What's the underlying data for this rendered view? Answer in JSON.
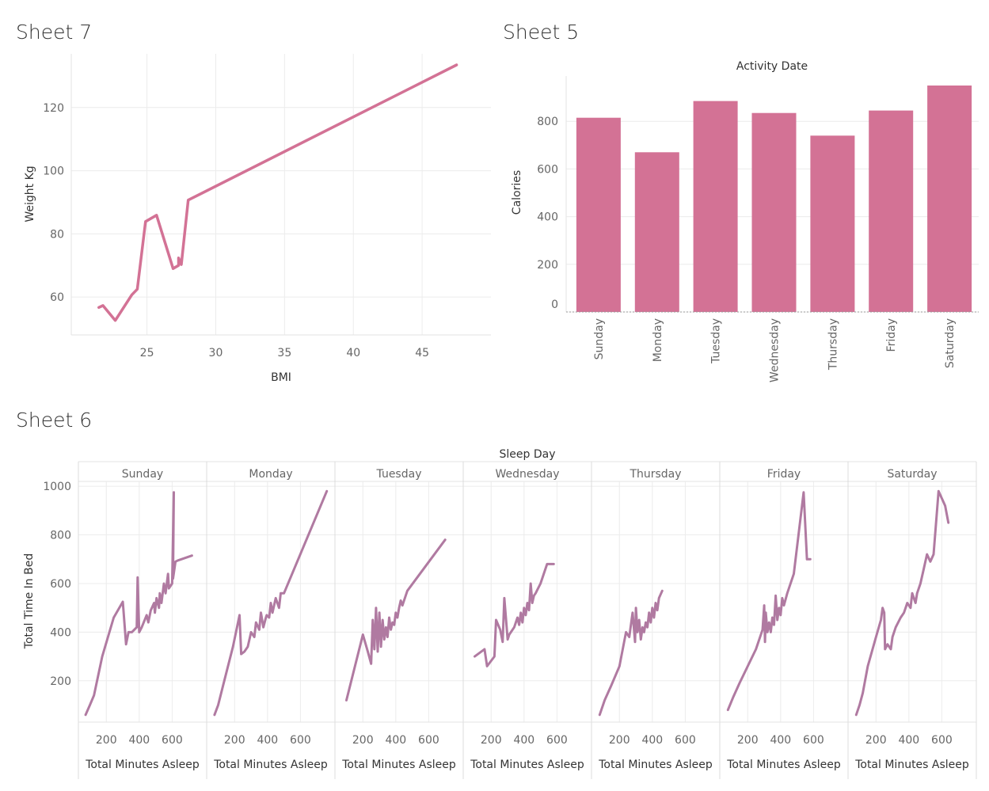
{
  "sheets": {
    "sheet7": "Sheet 7",
    "sheet5": "Sheet 5",
    "sheet6": "Sheet 6"
  },
  "colors": {
    "line": "#d37295",
    "bar": "#d37295",
    "small_multiple_line": "#b07aa1",
    "grid": "#ececec"
  },
  "chart_data": [
    {
      "id": "sheet7",
      "type": "line",
      "title": "Sheet 7",
      "xlabel": "BMI",
      "ylabel": "Weight Kg",
      "xlim": [
        19.5,
        50
      ],
      "ylim": [
        48,
        137
      ],
      "x_ticks": [
        25,
        30,
        35,
        40,
        45
      ],
      "y_ticks": [
        60,
        80,
        100,
        120
      ],
      "grid": true,
      "x": [
        21.5,
        21.8,
        22.7,
        23.9,
        24.3,
        24.9,
        25.7,
        26.9,
        27.3,
        27.3,
        27.5,
        28.0,
        47.5
      ],
      "y": [
        56.7,
        57.3,
        52.6,
        60.7,
        62.5,
        83.9,
        85.9,
        69.0,
        70.0,
        72.4,
        70.3,
        90.7,
        133.5
      ]
    },
    {
      "id": "sheet5",
      "type": "bar",
      "title": "Activity Date",
      "xlabel": "",
      "ylabel": "Calories",
      "ylim": [
        0,
        990
      ],
      "y_ticks": [
        0,
        200,
        400,
        600,
        800
      ],
      "grid": true,
      "categories": [
        "Sunday",
        "Monday",
        "Tuesday",
        "Wednesday",
        "Thursday",
        "Friday",
        "Saturday"
      ],
      "values": [
        815,
        670,
        885,
        835,
        740,
        845,
        950
      ]
    },
    {
      "id": "sheet6",
      "type": "line",
      "title": "Sleep Day",
      "xlabel": "Total Minutes Asleep",
      "ylabel": "Total Time In Bed",
      "ylim": [
        30,
        1020
      ],
      "xlim": [
        40,
        800
      ],
      "x_ticks": [
        200,
        400,
        600
      ],
      "y_ticks": [
        200,
        400,
        600,
        800,
        1000
      ],
      "grid": true,
      "panels": [
        {
          "name": "Sunday",
          "x": [
            74,
            100,
            125,
            175,
            245,
            300,
            320,
            335,
            355,
            385,
            390,
            400,
            415,
            445,
            455,
            470,
            490,
            495,
            505,
            520,
            525,
            535,
            550,
            560,
            575,
            580,
            600,
            610,
            605,
            620,
            635,
            720
          ],
          "y": [
            60,
            100,
            140,
            300,
            460,
            525,
            350,
            400,
            400,
            420,
            625,
            400,
            420,
            470,
            440,
            490,
            520,
            480,
            540,
            500,
            560,
            520,
            600,
            560,
            640,
            580,
            600,
            975,
            620,
            690,
            695,
            715
          ]
        },
        {
          "name": "Monday",
          "x": [
            78,
            100,
            130,
            190,
            230,
            240,
            260,
            280,
            300,
            320,
            330,
            350,
            360,
            375,
            390,
            395,
            410,
            420,
            430,
            450,
            470,
            480,
            500,
            760
          ],
          "y": [
            60,
            100,
            180,
            340,
            470,
            310,
            320,
            340,
            400,
            380,
            440,
            410,
            480,
            420,
            460,
            470,
            460,
            520,
            480,
            540,
            500,
            560,
            560,
            980
          ]
        },
        {
          "name": "Tuesday",
          "x": [
            100,
            200,
            230,
            250,
            260,
            270,
            280,
            290,
            300,
            310,
            320,
            330,
            340,
            350,
            360,
            370,
            380,
            390,
            400,
            410,
            420,
            430,
            440,
            470,
            700
          ],
          "y": [
            120,
            390,
            320,
            270,
            450,
            330,
            500,
            320,
            480,
            340,
            450,
            370,
            420,
            380,
            460,
            410,
            440,
            430,
            480,
            460,
            500,
            530,
            510,
            570,
            780
          ]
        },
        {
          "name": "Wednesday",
          "x": [
            100,
            160,
            175,
            220,
            230,
            255,
            270,
            280,
            300,
            310,
            340,
            360,
            370,
            380,
            390,
            400,
            410,
            420,
            430,
            440,
            450,
            460,
            470,
            500,
            540,
            560,
            580
          ],
          "y": [
            300,
            330,
            260,
            300,
            450,
            410,
            360,
            540,
            370,
            390,
            420,
            460,
            430,
            480,
            440,
            500,
            470,
            520,
            490,
            600,
            520,
            550,
            560,
            600,
            680,
            680,
            680
          ]
        },
        {
          "name": "Thursday",
          "x": [
            80,
            110,
            150,
            200,
            240,
            260,
            280,
            295,
            300,
            310,
            320,
            330,
            340,
            350,
            360,
            370,
            380,
            390,
            400,
            410,
            420,
            430,
            440,
            460
          ],
          "y": [
            60,
            120,
            180,
            260,
            400,
            380,
            480,
            360,
            500,
            400,
            450,
            370,
            420,
            400,
            440,
            420,
            480,
            440,
            500,
            460,
            520,
            490,
            540,
            570
          ]
        },
        {
          "name": "Friday",
          "x": [
            80,
            110,
            150,
            200,
            250,
            290,
            300,
            305,
            310,
            320,
            330,
            340,
            350,
            360,
            370,
            380,
            390,
            400,
            410,
            420,
            440,
            480,
            540,
            560,
            580
          ],
          "y": [
            80,
            130,
            190,
            260,
            330,
            410,
            510,
            360,
            480,
            400,
            440,
            400,
            460,
            430,
            550,
            450,
            500,
            470,
            540,
            510,
            560,
            640,
            975,
            700,
            700
          ]
        },
        {
          "name": "Saturday",
          "x": [
            80,
            100,
            120,
            150,
            200,
            230,
            240,
            250,
            255,
            270,
            290,
            300,
            320,
            350,
            370,
            390,
            410,
            420,
            440,
            450,
            470,
            490,
            510,
            530,
            550,
            580,
            620,
            640
          ],
          "y": [
            60,
            100,
            150,
            260,
            380,
            450,
            500,
            480,
            330,
            350,
            330,
            380,
            420,
            460,
            480,
            520,
            500,
            560,
            520,
            560,
            600,
            660,
            720,
            690,
            720,
            980,
            920,
            850
          ]
        }
      ]
    }
  ]
}
